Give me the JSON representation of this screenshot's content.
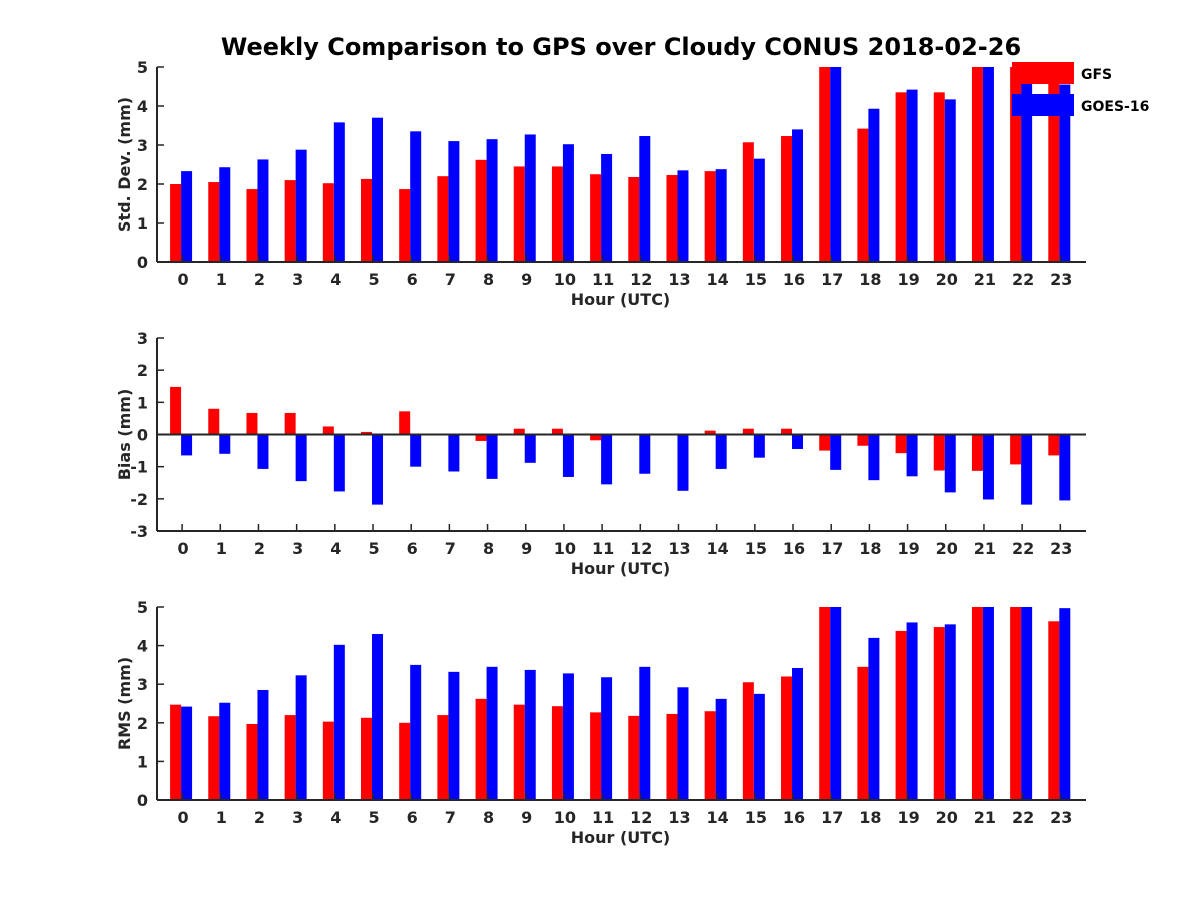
{
  "chart_data": {
    "title": "Weekly Comparison to GPS over Cloudy CONUS 2018-02-26",
    "type": "bar",
    "legend_placement": "top-right",
    "grid": false,
    "colors": {
      "GFS": "#ff0000",
      "GOES-16": "#0000ff"
    },
    "legend": [
      "GFS",
      "GOES-16"
    ],
    "categories": [
      "0",
      "1",
      "2",
      "3",
      "4",
      "5",
      "6",
      "7",
      "8",
      "9",
      "10",
      "11",
      "12",
      "13",
      "14",
      "15",
      "16",
      "17",
      "18",
      "19",
      "20",
      "21",
      "22",
      "23"
    ],
    "panels": [
      {
        "id": "std",
        "ylabel": "Std. Dev. (mm)",
        "xlabel": "Hour (UTC)",
        "ylim": [
          0,
          5
        ],
        "yticks": [
          "0",
          "1",
          "2",
          "3",
          "4",
          "5"
        ],
        "series": [
          {
            "name": "GFS",
            "values": [
              2.0,
              2.05,
              1.87,
              2.1,
              2.02,
              2.13,
              1.87,
              2.2,
              2.62,
              2.45,
              2.45,
              2.25,
              2.18,
              2.23,
              2.33,
              3.07,
              3.23,
              5.0,
              3.42,
              4.35,
              4.35,
              5.0,
              5.0,
              5.0
            ]
          },
          {
            "name": "GOES-16",
            "values": [
              2.33,
              2.43,
              2.63,
              2.88,
              3.58,
              3.7,
              3.35,
              3.1,
              3.15,
              3.27,
              3.02,
              2.77,
              3.23,
              2.35,
              2.38,
              2.65,
              3.4,
              5.0,
              3.93,
              4.42,
              4.17,
              5.0,
              5.0,
              4.55
            ]
          }
        ]
      },
      {
        "id": "bias",
        "ylabel": "Bias (mm)",
        "xlabel": "Hour (UTC)",
        "ylim": [
          -3,
          3
        ],
        "yticks": [
          "-3",
          "-2",
          "-1",
          "0",
          "1",
          "2",
          "3"
        ],
        "series": [
          {
            "name": "GFS",
            "values": [
              1.48,
              0.8,
              0.67,
              0.67,
              0.25,
              0.08,
              0.72,
              0.03,
              -0.2,
              0.18,
              0.18,
              -0.18,
              -0.03,
              0.02,
              0.12,
              0.18,
              0.18,
              -0.5,
              -0.35,
              -0.58,
              -1.12,
              -1.13,
              -0.93,
              -0.65
            ]
          },
          {
            "name": "GOES-16",
            "values": [
              -0.65,
              -0.6,
              -1.07,
              -1.45,
              -1.77,
              -2.18,
              -1.0,
              -1.15,
              -1.38,
              -0.88,
              -1.32,
              -1.55,
              -1.22,
              -1.75,
              -1.07,
              -0.72,
              -0.45,
              -1.1,
              -1.42,
              -1.3,
              -1.8,
              -2.02,
              -2.18,
              -2.05
            ]
          }
        ]
      },
      {
        "id": "rms",
        "ylabel": "RMS (mm)",
        "xlabel": "Hour (UTC)",
        "ylim": [
          0,
          5
        ],
        "yticks": [
          "0",
          "1",
          "2",
          "3",
          "4",
          "5"
        ],
        "series": [
          {
            "name": "GFS",
            "values": [
              2.47,
              2.17,
              1.97,
              2.2,
              2.03,
              2.13,
              2.0,
              2.2,
              2.62,
              2.47,
              2.43,
              2.27,
              2.18,
              2.23,
              2.3,
              3.05,
              3.2,
              5.0,
              3.45,
              4.38,
              4.48,
              5.0,
              5.0,
              4.63
            ]
          },
          {
            "name": "GOES-16",
            "values": [
              2.42,
              2.52,
              2.85,
              3.23,
              4.02,
              4.3,
              3.5,
              3.32,
              3.45,
              3.37,
              3.28,
              3.18,
              3.45,
              2.92,
              2.62,
              2.75,
              3.42,
              5.0,
              4.2,
              4.6,
              4.55,
              5.0,
              5.0,
              4.97
            ]
          }
        ]
      }
    ]
  }
}
